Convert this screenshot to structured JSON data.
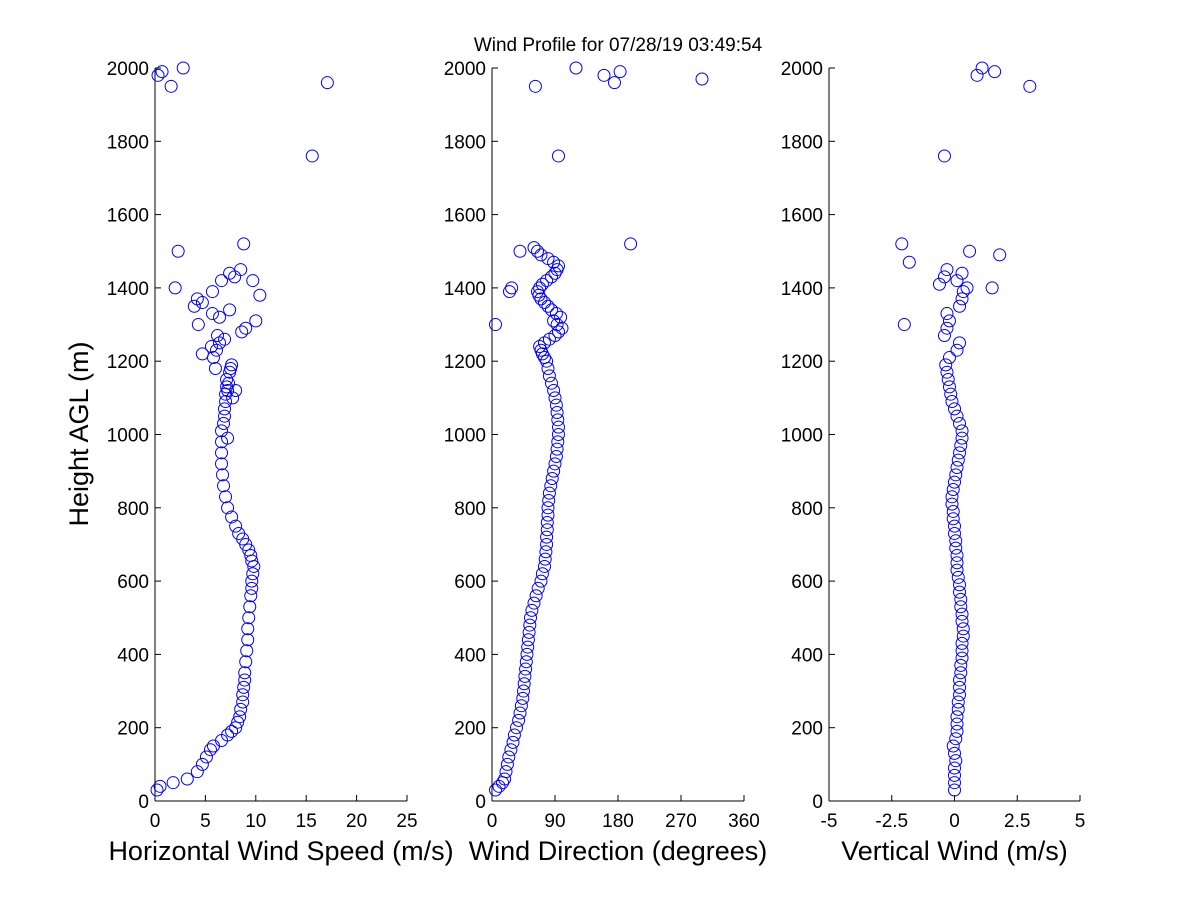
{
  "figure": {
    "title": "Wind Profile for  07/28/19 03:49:54",
    "ylabel": "Height AGL (m)"
  },
  "chart_data": [
    {
      "type": "scatter",
      "xlabel": "Horizontal Wind Speed (m/s)",
      "ylabel": "Height AGL (m)",
      "xlim": [
        0,
        25
      ],
      "ylim": [
        0,
        2000
      ],
      "xticks": [
        "0",
        "5",
        "10",
        "15",
        "20",
        "25"
      ],
      "yticks": [
        "0",
        "200",
        "400",
        "600",
        "800",
        "1000",
        "1200",
        "1400",
        "1600",
        "1800",
        "2000"
      ],
      "xtick_values": [
        0,
        5,
        10,
        15,
        20,
        25
      ],
      "ytick_values": [
        0,
        200,
        400,
        600,
        800,
        1000,
        1200,
        1400,
        1600,
        1800,
        2000
      ],
      "marker": "open-circle",
      "color": "#0000ff",
      "x": [
        0.2,
        0.5,
        1.8,
        3.2,
        4.2,
        4.7,
        5.1,
        5.5,
        5.8,
        6.6,
        7.2,
        7.6,
        8.0,
        8.2,
        8.4,
        8.5,
        8.7,
        8.7,
        8.8,
        8.9,
        8.9,
        9.0,
        9.1,
        9.2,
        9.2,
        9.3,
        9.4,
        9.5,
        9.6,
        9.6,
        9.7,
        9.8,
        9.6,
        9.5,
        9.3,
        9.0,
        8.7,
        8.3,
        8.0,
        7.6,
        7.2,
        7.0,
        6.8,
        6.7,
        6.6,
        6.6,
        6.6,
        6.6,
        6.8,
        6.9,
        6.9,
        7.0,
        7.0,
        7.1,
        7.1,
        7.2,
        7.2,
        7.3,
        7.4,
        7.5,
        7.6,
        8.0,
        7.7,
        6.4,
        6.1,
        5.8,
        6.0,
        4.7,
        5.6,
        6.2,
        6.9,
        8.6,
        9.0,
        10.0,
        4.3,
        6.4,
        5.7,
        7.4,
        3.9,
        4.7,
        4.2,
        10.4,
        2.0,
        5.7,
        6.6,
        9.7,
        7.4,
        7.9,
        8.5,
        2.3,
        8.8,
        15.6,
        1.6,
        17.1,
        0.3,
        0.7,
        2.8
      ],
      "y": [
        30,
        40,
        50,
        60,
        80,
        100,
        120,
        140,
        150,
        165,
        180,
        190,
        200,
        215,
        230,
        250,
        270,
        290,
        310,
        330,
        350,
        380,
        410,
        440,
        470,
        500,
        530,
        560,
        580,
        600,
        620,
        640,
        655,
        670,
        685,
        700,
        715,
        730,
        750,
        775,
        800,
        830,
        860,
        890,
        920,
        950,
        980,
        1010,
        1030,
        1050,
        1070,
        1090,
        1110,
        1130,
        1150,
        990,
        1120,
        1140,
        1170,
        1180,
        1190,
        1120,
        1100,
        1250,
        1230,
        1210,
        1180,
        1220,
        1240,
        1270,
        1260,
        1280,
        1290,
        1310,
        1300,
        1320,
        1330,
        1340,
        1350,
        1360,
        1370,
        1380,
        1400,
        1390,
        1420,
        1420,
        1440,
        1430,
        1450,
        1500,
        1520,
        1760,
        1950,
        1960,
        1980,
        1990,
        2000
      ]
    },
    {
      "type": "scatter",
      "xlabel": "Wind Direction (degrees)",
      "ylabel": "",
      "xlim": [
        0,
        360
      ],
      "ylim": [
        0,
        2000
      ],
      "xticks": [
        "0",
        "90",
        "180",
        "270",
        "360"
      ],
      "yticks": [
        "0",
        "200",
        "400",
        "600",
        "800",
        "1000",
        "1200",
        "1400",
        "1600",
        "1800",
        "2000"
      ],
      "xtick_values": [
        0,
        90,
        180,
        270,
        360
      ],
      "ytick_values": [
        0,
        200,
        400,
        600,
        800,
        1000,
        1200,
        1400,
        1600,
        1800,
        2000
      ],
      "marker": "open-circle",
      "color": "#0000ff",
      "x": [
        5,
        10,
        15,
        18,
        20,
        22,
        24,
        27,
        30,
        32,
        35,
        38,
        40,
        42,
        44,
        45,
        46,
        47,
        48,
        49,
        50,
        51,
        52,
        53,
        54,
        55,
        57,
        60,
        63,
        66,
        70,
        72,
        75,
        76,
        77,
        78,
        78,
        79,
        79,
        80,
        80,
        81,
        82,
        84,
        86,
        88,
        90,
        92,
        93,
        94,
        95,
        95,
        94,
        93,
        92,
        90,
        88,
        85,
        82,
        80,
        78,
        75,
        72,
        70,
        68,
        75,
        82,
        90,
        95,
        100,
        93,
        88,
        98,
        92,
        85,
        80,
        75,
        70,
        67,
        65,
        68,
        72,
        78,
        85,
        90,
        93,
        95,
        88,
        80,
        70,
        65,
        60,
        5,
        25,
        28,
        40,
        198,
        95,
        62,
        120,
        160,
        175,
        183,
        300
      ],
      "y": [
        30,
        40,
        50,
        60,
        80,
        100,
        120,
        140,
        160,
        180,
        200,
        220,
        240,
        260,
        280,
        300,
        320,
        340,
        360,
        380,
        400,
        420,
        440,
        460,
        480,
        500,
        520,
        540,
        560,
        580,
        600,
        620,
        640,
        660,
        680,
        700,
        720,
        740,
        760,
        780,
        800,
        820,
        840,
        860,
        880,
        900,
        920,
        940,
        960,
        980,
        1000,
        1020,
        1040,
        1060,
        1080,
        1100,
        1120,
        1140,
        1160,
        1180,
        1200,
        1210,
        1220,
        1230,
        1240,
        1250,
        1260,
        1270,
        1280,
        1290,
        1300,
        1310,
        1320,
        1330,
        1340,
        1350,
        1360,
        1370,
        1380,
        1390,
        1400,
        1410,
        1420,
        1430,
        1440,
        1450,
        1460,
        1470,
        1480,
        1490,
        1500,
        1510,
        1300,
        1390,
        1400,
        1500,
        1520,
        1760,
        1950,
        2000,
        1980,
        1960,
        1990,
        1970
      ]
    },
    {
      "type": "scatter",
      "xlabel": "Vertical Wind (m/s)",
      "ylabel": "",
      "xlim": [
        -5,
        5
      ],
      "ylim": [
        0,
        2000
      ],
      "xticks": [
        "-5",
        "-2.5",
        "0",
        "2.5",
        "5"
      ],
      "yticks": [
        "0",
        "200",
        "400",
        "600",
        "800",
        "1000",
        "1200",
        "1400",
        "1600",
        "1800",
        "2000"
      ],
      "xtick_values": [
        -5,
        -2.5,
        0,
        2.5,
        5
      ],
      "ytick_values": [
        0,
        200,
        400,
        600,
        800,
        1000,
        1200,
        1400,
        1600,
        1800,
        2000
      ],
      "marker": "open-circle",
      "color": "#0000ff",
      "x": [
        0.0,
        0.0,
        0.0,
        0.0,
        0.05,
        0.0,
        -0.05,
        0.05,
        0.1,
        0.1,
        0.1,
        0.15,
        0.15,
        0.2,
        0.2,
        0.2,
        0.25,
        0.25,
        0.3,
        0.3,
        0.3,
        0.35,
        0.35,
        0.3,
        0.3,
        0.25,
        0.25,
        0.2,
        0.2,
        0.15,
        0.1,
        0.1,
        0.1,
        0.05,
        0.05,
        0.0,
        0.0,
        -0.05,
        -0.05,
        -0.1,
        -0.1,
        -0.05,
        0.0,
        0.05,
        0.1,
        0.15,
        0.2,
        0.25,
        0.3,
        0.3,
        0.2,
        0.1,
        0.0,
        -0.1,
        -0.15,
        -0.2,
        -0.25,
        -0.3,
        -0.35,
        -0.2,
        0.1,
        0.2,
        -0.4,
        -0.3,
        -0.2,
        -0.3,
        0.2,
        0.3,
        0.35,
        -0.6,
        -0.4,
        -0.3,
        0.1,
        0.3,
        0.5,
        -2.0,
        -1.8,
        -2.1,
        0.6,
        1.8,
        1.5,
        -0.4,
        0.9,
        1.1,
        1.6,
        3.0
      ],
      "y": [
        30,
        50,
        70,
        90,
        110,
        130,
        150,
        170,
        190,
        210,
        230,
        250,
        270,
        290,
        310,
        330,
        350,
        370,
        390,
        410,
        430,
        450,
        470,
        490,
        510,
        530,
        550,
        570,
        590,
        610,
        630,
        650,
        670,
        690,
        710,
        730,
        750,
        770,
        790,
        810,
        830,
        850,
        870,
        890,
        910,
        930,
        950,
        970,
        990,
        1010,
        1030,
        1050,
        1070,
        1090,
        1110,
        1130,
        1150,
        1170,
        1190,
        1210,
        1230,
        1250,
        1270,
        1290,
        1310,
        1330,
        1350,
        1370,
        1390,
        1410,
        1430,
        1450,
        1420,
        1440,
        1400,
        1300,
        1470,
        1520,
        1500,
        1490,
        1400,
        1760,
        1980,
        2000,
        1990,
        1950
      ]
    }
  ]
}
